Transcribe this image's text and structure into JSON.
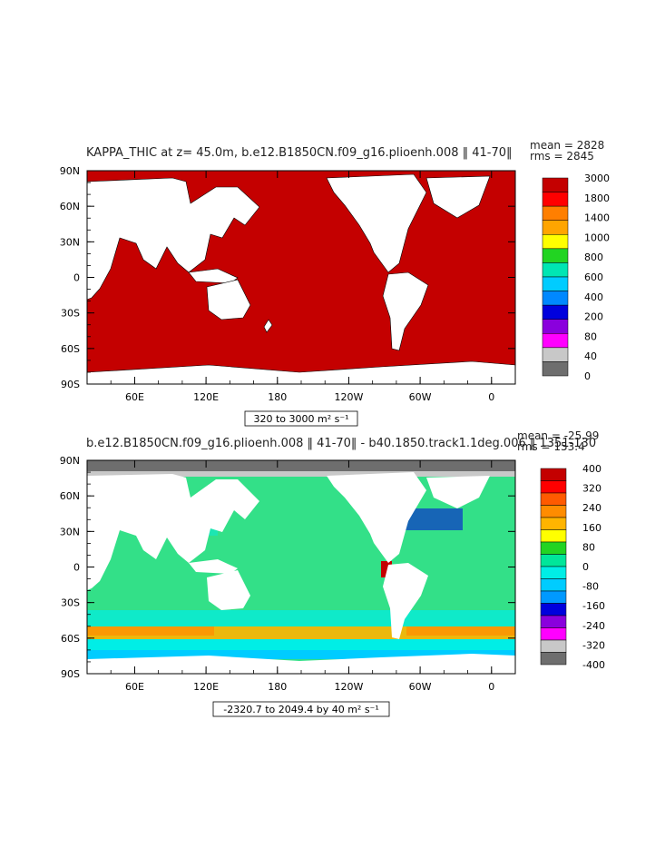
{
  "chart_data": [
    {
      "type": "heatmap",
      "title": "KAPPA_THIC at z=  45.0m, b.e12.B1850CN.f09_g16.plioenh.008 ‖ 41-70‖",
      "stats": {
        "mean": "mean = 2828",
        "rms": "rms = 2845"
      },
      "range_label": "320 to 3000 m² s⁻¹",
      "lat_ticks": [
        "90N",
        "60N",
        "30N",
        "0",
        "30S",
        "60S",
        "90S"
      ],
      "lon_ticks": [
        "60E",
        "120E",
        "180",
        "120W",
        "60W",
        "0"
      ],
      "ylim": [
        -90,
        90
      ],
      "xlim": [
        20,
        380
      ],
      "lon_tick_values": [
        60,
        120,
        180,
        240,
        300,
        360
      ],
      "legend": {
        "labels": [
          "3000",
          "1800",
          "1400",
          "1000",
          "800",
          "600",
          "400",
          "200",
          "80",
          "40",
          "0"
        ],
        "colors": [
          "#c40000",
          "#ff0000",
          "#ff7f00",
          "#ffa500",
          "#ffff00",
          "#22d422",
          "#00e6b3",
          "#00ccff",
          "#0088ff",
          "#0000dd",
          "#8a00dd",
          "#ff00ff",
          "#c8c8c8",
          "#6e6e6e"
        ]
      },
      "field_color": "#c40000"
    },
    {
      "type": "heatmap",
      "title": "b.e12.B1850CN.f09_g16.plioenh.008 ‖ 41-70‖  -  b40.1850.track1.1deg.006 ‖ 1351-130",
      "stats": {
        "mean": "mean = -25.99",
        "rms": "rms = 153.4"
      },
      "range_label": "-2320.7 to 2049.4 by 40 m² s⁻¹",
      "lat_ticks": [
        "90N",
        "60N",
        "30N",
        "0",
        "30S",
        "60S",
        "90S"
      ],
      "lon_ticks": [
        "60E",
        "120E",
        "180",
        "120W",
        "60W",
        "0"
      ],
      "ylim": [
        -90,
        90
      ],
      "xlim": [
        20,
        380
      ],
      "lon_tick_values": [
        60,
        120,
        180,
        240,
        300,
        360
      ],
      "legend": {
        "labels": [
          "400",
          "320",
          "240",
          "160",
          "80",
          "0",
          "-80",
          "-160",
          "-240",
          "-320",
          "-400"
        ],
        "colors": [
          "#c40000",
          "#ff0000",
          "#ff5a00",
          "#ff8c00",
          "#ffb400",
          "#ffff00",
          "#22d422",
          "#00e69a",
          "#00eee6",
          "#00ccff",
          "#0099ff",
          "#0000dd",
          "#8a00dd",
          "#ff00ff",
          "#c8c8c8",
          "#6e6e6e"
        ]
      },
      "field_color": "#33e088"
    }
  ]
}
